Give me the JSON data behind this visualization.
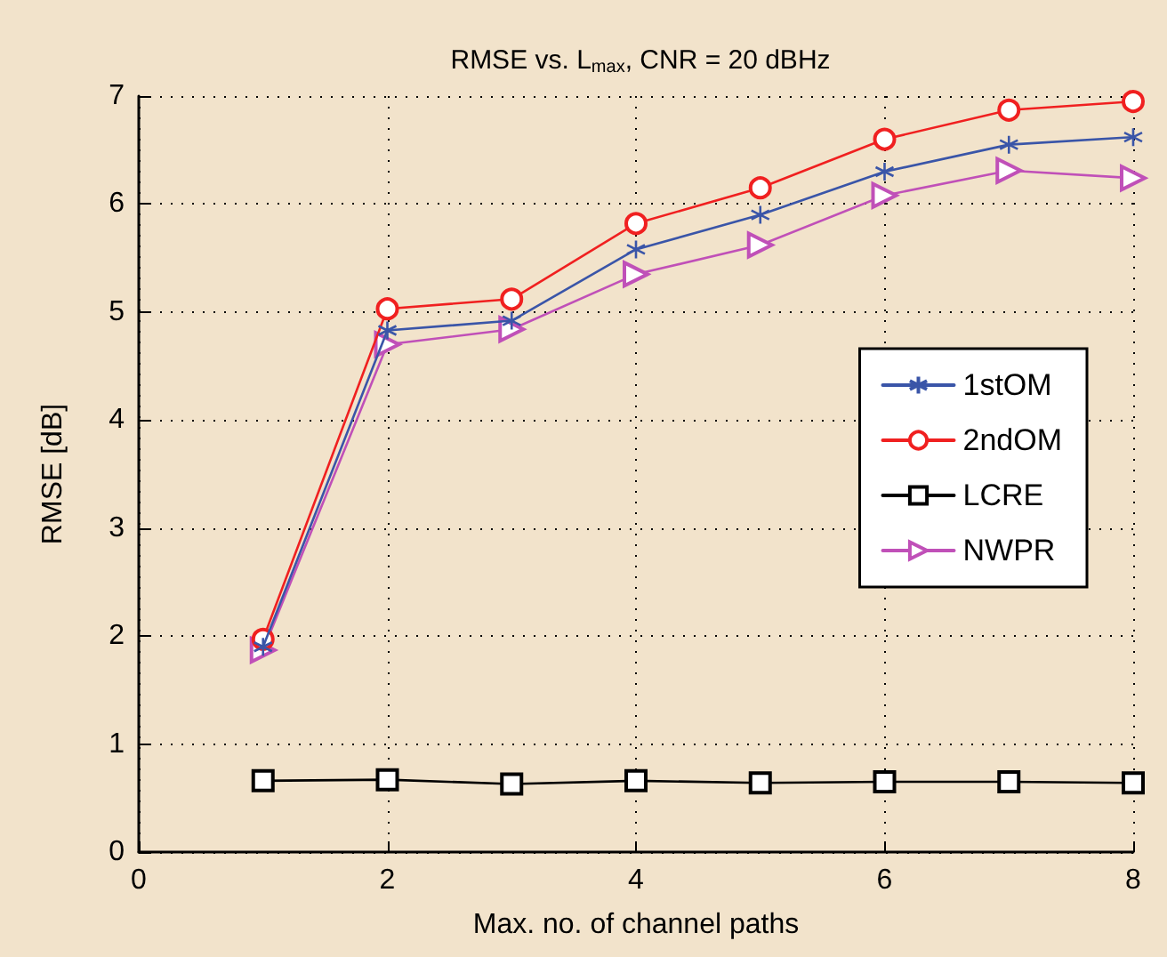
{
  "chart_data": {
    "type": "line",
    "title": "RMSE vs. L$_{max}$, CNR = 20 dBHz",
    "xlabel": "Max. no. of channel paths",
    "ylabel": "RMSE [dB]",
    "x": [
      1,
      2,
      3,
      4,
      5,
      6,
      7,
      8
    ],
    "series": [
      {
        "name": "1stOM",
        "color": "#3a55a8",
        "marker": "cross",
        "values": [
          1.9,
          4.83,
          4.92,
          5.58,
          5.9,
          6.3,
          6.55,
          6.62
        ]
      },
      {
        "name": "2ndOM",
        "color": "#f02020",
        "marker": "circle",
        "values": [
          1.97,
          5.03,
          5.12,
          5.82,
          6.15,
          6.6,
          6.87,
          6.95
        ]
      },
      {
        "name": "LCRE",
        "color": "#000000",
        "marker": "square",
        "values": [
          0.66,
          0.67,
          0.63,
          0.66,
          0.64,
          0.65,
          0.65,
          0.64
        ]
      },
      {
        "name": "NWPR",
        "color": "#c050b8",
        "marker": "triangle",
        "values": [
          1.87,
          4.7,
          4.84,
          5.35,
          5.62,
          6.08,
          6.31,
          6.24
        ]
      }
    ],
    "xlim": [
      0,
      8
    ],
    "xticks": [
      0,
      2,
      4,
      6,
      8
    ],
    "ylim": [
      0,
      7
    ],
    "yticks": [
      0,
      1,
      2,
      3,
      4,
      5,
      6,
      7
    ],
    "grid": true,
    "legend": "right",
    "line_style": "solid"
  }
}
